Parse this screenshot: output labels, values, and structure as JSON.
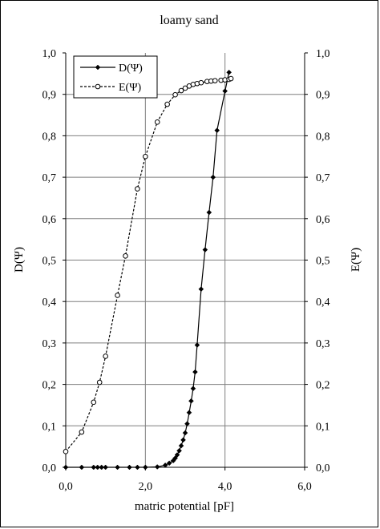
{
  "chart_data": {
    "type": "line",
    "title": "loamy sand",
    "xlabel": "matric potential  [pF]",
    "ylabel": "D(Ψ)",
    "y2label": "E(Ψ)",
    "xlim": [
      0,
      6
    ],
    "ylim": [
      0,
      1
    ],
    "y2lim": [
      0,
      1
    ],
    "x_ticks": [
      "0,0",
      "2,0",
      "4,0",
      "6,0"
    ],
    "y_ticks": [
      "0,0",
      "0,1",
      "0,2",
      "0,3",
      "0,4",
      "0,5",
      "0,6",
      "0,7",
      "0,8",
      "0,9",
      "1,0"
    ],
    "y2_ticks": [
      "0,0",
      "0,1",
      "0,2",
      "0,3",
      "0,4",
      "0,5",
      "0,6",
      "0,7",
      "0,8",
      "0,9",
      "1,0"
    ],
    "grid": {
      "horizontal": true,
      "vertical": true
    },
    "legend_position": "top-left",
    "series": [
      {
        "name": "D(Ψ)",
        "style": "solid",
        "marker": "filled-diamond",
        "color": "#000000",
        "x": [
          0.0,
          0.4,
          0.7,
          0.8,
          0.9,
          1.0,
          1.3,
          1.6,
          1.8,
          2.0,
          2.3,
          2.5,
          2.6,
          2.7,
          2.75,
          2.8,
          2.85,
          2.9,
          2.95,
          3.0,
          3.05,
          3.1,
          3.15,
          3.2,
          3.25,
          3.3,
          3.4,
          3.5,
          3.6,
          3.7,
          3.8,
          4.0,
          4.1
        ],
        "y": [
          0.0,
          0.0,
          0.0,
          0.0,
          0.0,
          0.0,
          0.0,
          0.0,
          0.0,
          0.0,
          0.001,
          0.005,
          0.01,
          0.016,
          0.022,
          0.03,
          0.04,
          0.052,
          0.066,
          0.083,
          0.105,
          0.132,
          0.16,
          0.19,
          0.23,
          0.295,
          0.43,
          0.525,
          0.615,
          0.7,
          0.813,
          0.908,
          0.953
        ]
      },
      {
        "name": "E(Ψ)",
        "style": "dashed",
        "marker": "open-circle",
        "color": "#000000",
        "x": [
          0.0,
          0.4,
          0.7,
          0.85,
          1.0,
          1.3,
          1.5,
          1.8,
          2.0,
          2.3,
          2.55,
          2.75,
          2.9,
          3.0,
          3.1,
          3.2,
          3.3,
          3.4,
          3.55,
          3.65,
          3.75,
          3.9,
          4.0,
          4.1,
          4.15
        ],
        "y": [
          0.038,
          0.085,
          0.157,
          0.205,
          0.268,
          0.415,
          0.51,
          0.672,
          0.75,
          0.833,
          0.876,
          0.899,
          0.909,
          0.915,
          0.92,
          0.924,
          0.926,
          0.928,
          0.931,
          0.932,
          0.933,
          0.934,
          0.935,
          0.936,
          0.938
        ]
      }
    ]
  }
}
